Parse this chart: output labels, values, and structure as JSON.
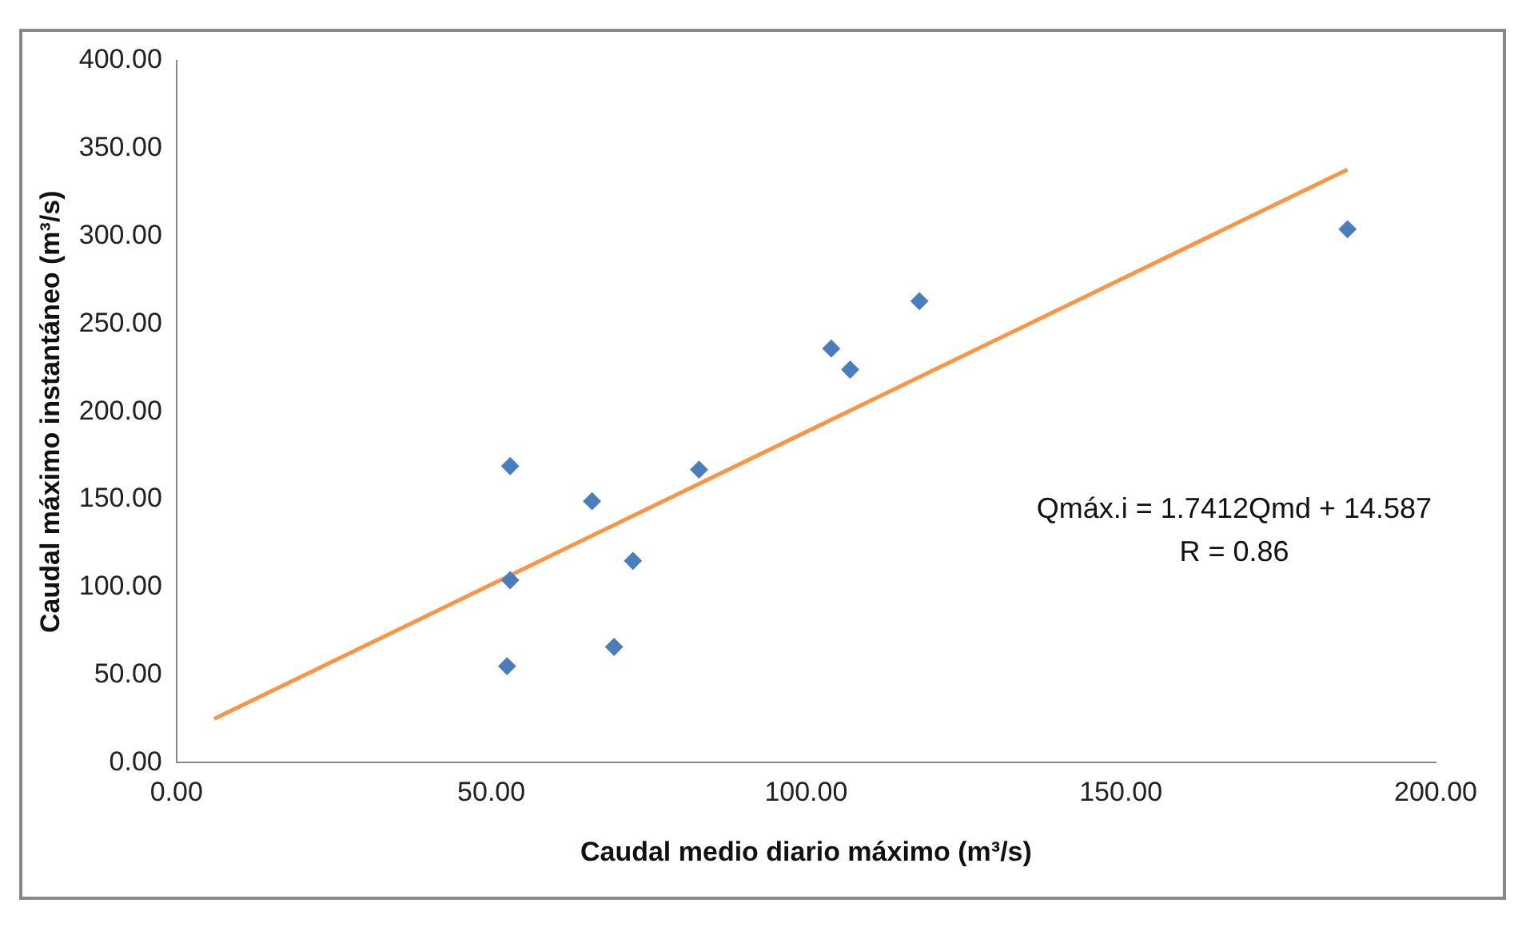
{
  "chart_data": {
    "type": "scatter",
    "xlabel": "Caudal medio diario máximo (m³/s)",
    "ylabel": "Caudal máximo instantáneo (m³/s)",
    "series": [
      {
        "type": "scatter",
        "marker": "diamond",
        "color": "#4a7ebb",
        "x": [
          53,
          53,
          52.5,
          66,
          69.5,
          72.5,
          83,
          104,
          107,
          118,
          186
        ],
        "values": [
          169,
          104,
          55,
          149,
          66,
          115,
          167,
          236,
          224,
          263,
          304
        ]
      },
      {
        "type": "line",
        "marker": "none",
        "color": "#f79646",
        "x": [
          6,
          186
        ],
        "values": [
          25,
          338
        ]
      }
    ],
    "xlim": [
      0,
      200
    ],
    "xticks": [
      {
        "value": 0,
        "label": "0.00"
      },
      {
        "value": 50,
        "label": "50.00"
      },
      {
        "value": 100,
        "label": "100.00"
      },
      {
        "value": 150,
        "label": "150.00"
      },
      {
        "value": 200,
        "label": "200.00"
      }
    ],
    "ylim": [
      0,
      400
    ],
    "yticks": [
      {
        "value": 0,
        "label": "0.00"
      },
      {
        "value": 50,
        "label": "50.00"
      },
      {
        "value": 100,
        "label": "100.00"
      },
      {
        "value": 150,
        "label": "150.00"
      },
      {
        "value": 200,
        "label": "200.00"
      },
      {
        "value": 250,
        "label": "250.00"
      },
      {
        "value": 300,
        "label": "300.00"
      },
      {
        "value": 350,
        "label": "350.00"
      },
      {
        "value": 400,
        "label": "400.00"
      }
    ],
    "annotations": [
      "Qmáx.i = 1.7412Qmd + 14.587",
      "R = 0.86"
    ],
    "grid": false,
    "legend": false
  }
}
